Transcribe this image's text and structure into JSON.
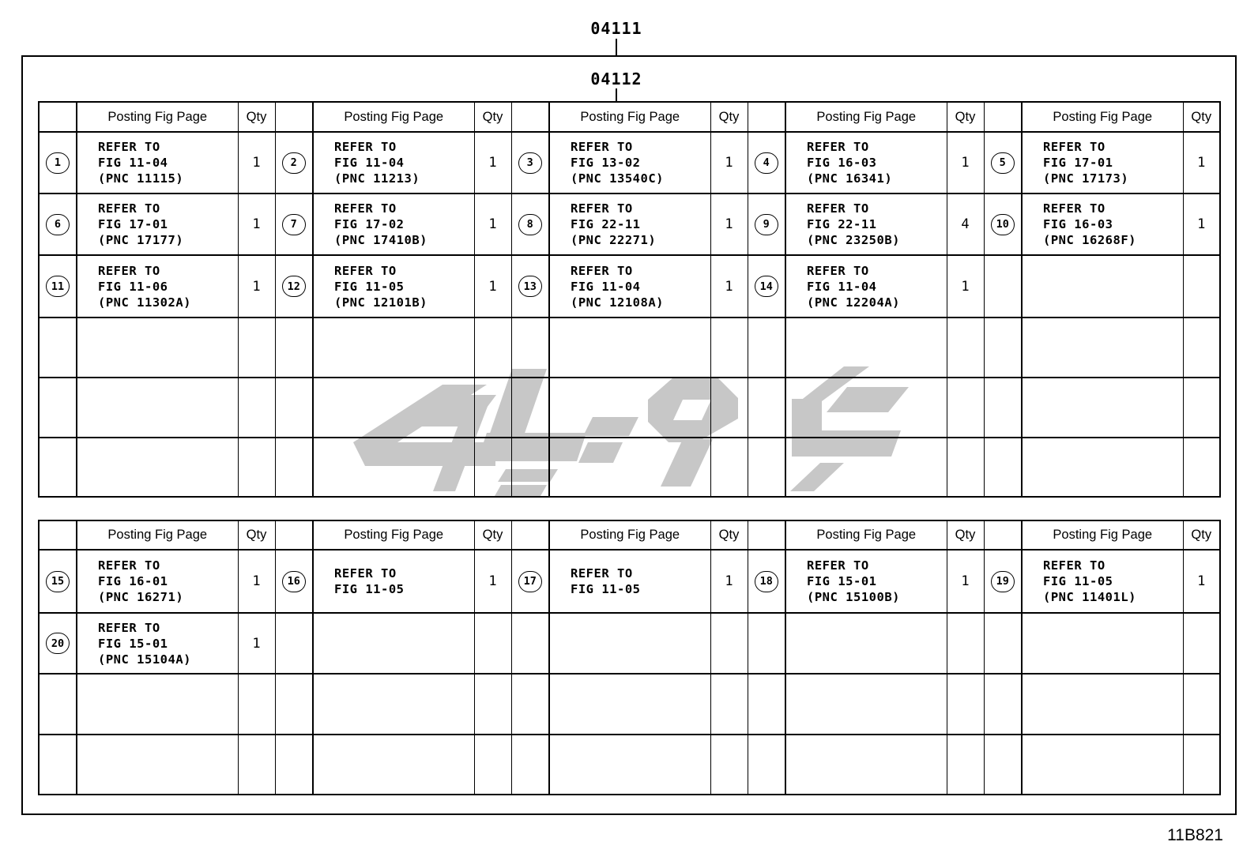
{
  "labels": {
    "code_top": "04111",
    "code_sub": "04112",
    "sheet_code": "11B821"
  },
  "header": {
    "posting": "Posting Fig Page",
    "qty": "Qty"
  },
  "watermark_color": "#c7c7c7",
  "tables": [
    {
      "empty_rows": 3,
      "rows": [
        [
          {
            "num": "1",
            "lines": [
              "REFER TO",
              "FIG 11-04",
              "(PNC 11115)"
            ],
            "qty": "1"
          },
          {
            "num": "2",
            "lines": [
              "REFER TO",
              "FIG 11-04",
              "(PNC 11213)"
            ],
            "qty": "1"
          },
          {
            "num": "3",
            "lines": [
              "REFER TO",
              "FIG 13-02",
              "(PNC 13540C)"
            ],
            "qty": "1"
          },
          {
            "num": "4",
            "lines": [
              "REFER TO",
              "FIG 16-03",
              "(PNC 16341)"
            ],
            "qty": "1"
          },
          {
            "num": "5",
            "lines": [
              "REFER TO",
              "FIG 17-01",
              "(PNC 17173)"
            ],
            "qty": "1"
          }
        ],
        [
          {
            "num": "6",
            "lines": [
              "REFER TO",
              "FIG 17-01",
              "(PNC 17177)"
            ],
            "qty": "1"
          },
          {
            "num": "7",
            "lines": [
              "REFER TO",
              "FIG 17-02",
              "(PNC 17410B)"
            ],
            "qty": "1"
          },
          {
            "num": "8",
            "lines": [
              "REFER TO",
              "FIG 22-11",
              "(PNC 22271)"
            ],
            "qty": "1"
          },
          {
            "num": "9",
            "lines": [
              "REFER TO",
              "FIG 22-11",
              "(PNC 23250B)"
            ],
            "qty": "4"
          },
          {
            "num": "10",
            "lines": [
              "REFER TO",
              "FIG 16-03",
              "(PNC 16268F)"
            ],
            "qty": "1"
          }
        ],
        [
          {
            "num": "11",
            "lines": [
              "REFER TO",
              "FIG 11-06",
              "(PNC 11302A)"
            ],
            "qty": "1"
          },
          {
            "num": "12",
            "lines": [
              "REFER TO",
              "FIG 11-05",
              "(PNC 12101B)"
            ],
            "qty": "1"
          },
          {
            "num": "13",
            "lines": [
              "REFER TO",
              "FIG 11-04",
              "(PNC 12108A)"
            ],
            "qty": "1"
          },
          {
            "num": "14",
            "lines": [
              "REFER TO",
              "FIG 11-04",
              "(PNC 12204A)"
            ],
            "qty": "1"
          },
          null
        ]
      ]
    },
    {
      "empty_rows": 2,
      "rows": [
        [
          {
            "num": "15",
            "lines": [
              "REFER TO",
              "FIG 16-01",
              "(PNC 16271)"
            ],
            "qty": "1"
          },
          {
            "num": "16",
            "lines": [
              "REFER TO",
              "FIG 11-05"
            ],
            "qty": "1"
          },
          {
            "num": "17",
            "lines": [
              "REFER TO",
              "FIG 11-05"
            ],
            "qty": "1"
          },
          {
            "num": "18",
            "lines": [
              "REFER TO",
              "FIG 15-01",
              "(PNC 15100B)"
            ],
            "qty": "1"
          },
          {
            "num": "19",
            "lines": [
              "REFER TO",
              "FIG 11-05",
              "(PNC 11401L)"
            ],
            "qty": "1"
          }
        ],
        [
          {
            "num": "20",
            "lines": [
              "REFER TO",
              "FIG 15-01",
              "(PNC 15104A)"
            ],
            "qty": "1"
          },
          null,
          null,
          null,
          null
        ]
      ]
    }
  ]
}
